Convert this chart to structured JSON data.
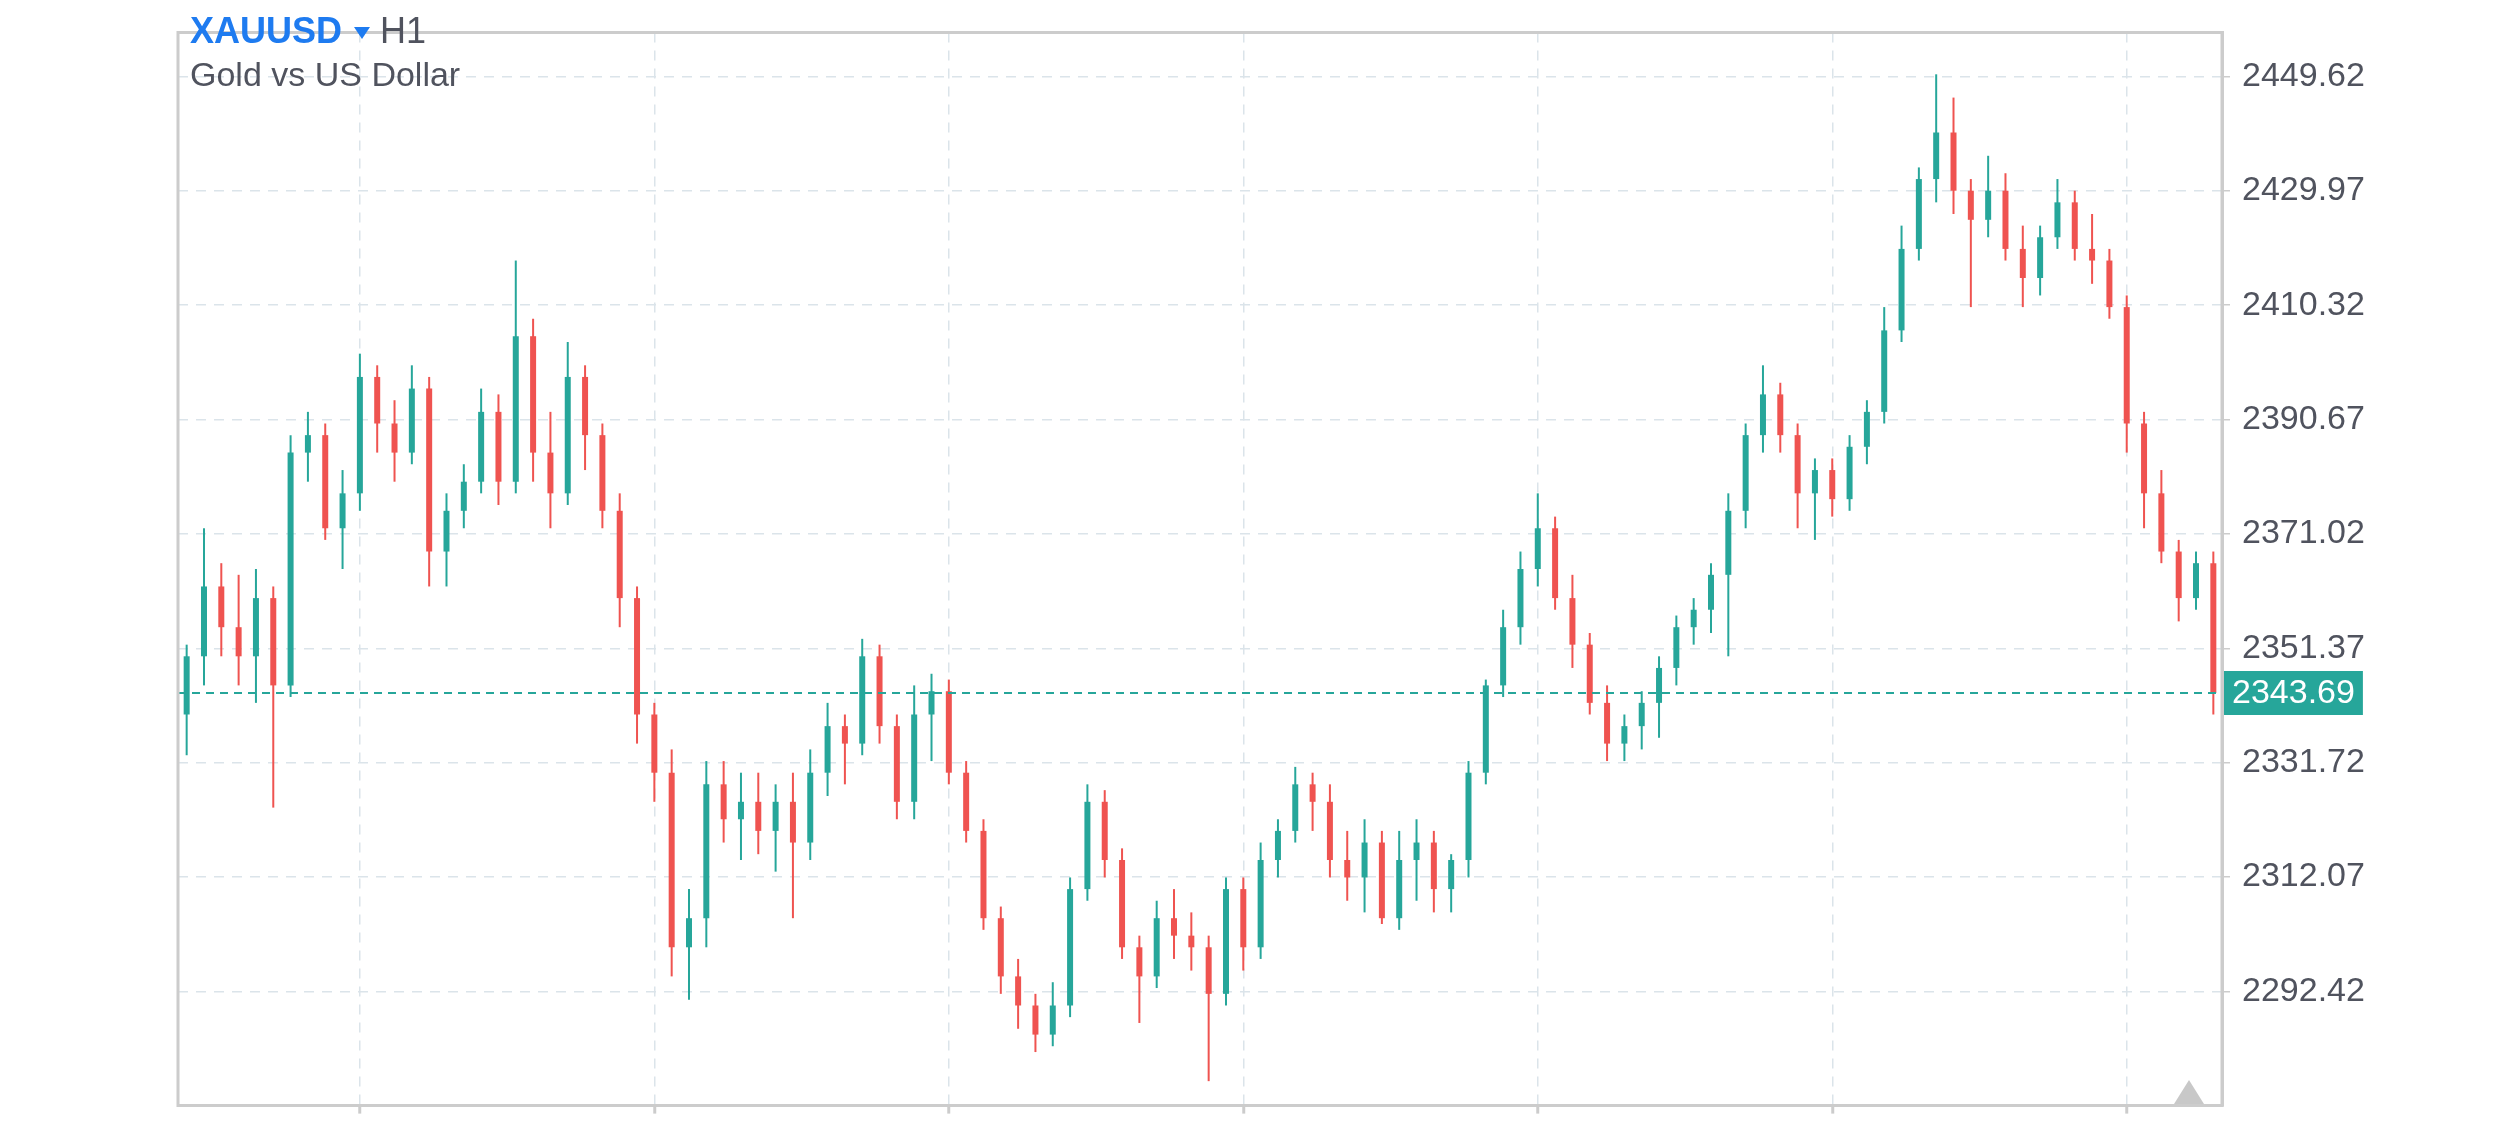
{
  "chart_data": {
    "type": "candlestick",
    "title": "XAUUSD",
    "subtitle": "Gold vs US Dollar",
    "annotations": [
      "H1"
    ],
    "categories": [
      null,
      null,
      null,
      null,
      null,
      null,
      null,
      null,
      null,
      null,
      null,
      null,
      null,
      null,
      null,
      null,
      null,
      null,
      null,
      null,
      null,
      null,
      null,
      null,
      null,
      null,
      null,
      null,
      null,
      null,
      null,
      null,
      null,
      null,
      null,
      null,
      null,
      null,
      null,
      null,
      null,
      null,
      null,
      null,
      null,
      null,
      null,
      null,
      null,
      null,
      null,
      null,
      null,
      null,
      null,
      null,
      null,
      null,
      null,
      null,
      null,
      null,
      null,
      null,
      null,
      null,
      null,
      null,
      null,
      null,
      null,
      null,
      null,
      null,
      null,
      null,
      null,
      null,
      null,
      null,
      null,
      null,
      null,
      null,
      null,
      null,
      null,
      null,
      null,
      null,
      null,
      null,
      null,
      null,
      null,
      null,
      null,
      null,
      null,
      null,
      null,
      null,
      null,
      null,
      null,
      null,
      null,
      null,
      null,
      null,
      null,
      null,
      null,
      null,
      null,
      null,
      null,
      null
    ],
    "ohlc": [
      [
        2340,
        2352,
        2333,
        2350
      ],
      [
        2350,
        2372,
        2345,
        2362
      ],
      [
        2362,
        2366,
        2350,
        2355
      ],
      [
        2355,
        2364,
        2345,
        2350
      ],
      [
        2350,
        2365,
        2342,
        2360
      ],
      [
        2360,
        2362,
        2324,
        2345
      ],
      [
        2345,
        2388,
        2343,
        2385
      ],
      [
        2385,
        2392,
        2380,
        2388
      ],
      [
        2388,
        2390,
        2370,
        2372
      ],
      [
        2372,
        2382,
        2365,
        2378
      ],
      [
        2378,
        2402,
        2375,
        2398
      ],
      [
        2398,
        2400,
        2385,
        2390
      ],
      [
        2390,
        2394,
        2380,
        2385
      ],
      [
        2385,
        2400,
        2383,
        2396
      ],
      [
        2396,
        2398,
        2362,
        2368
      ],
      [
        2368,
        2378,
        2362,
        2375
      ],
      [
        2375,
        2383,
        2372,
        2380
      ],
      [
        2380,
        2396,
        2378,
        2392
      ],
      [
        2392,
        2395,
        2376,
        2380
      ],
      [
        2380,
        2418,
        2378,
        2405
      ],
      [
        2405,
        2408,
        2380,
        2385
      ],
      [
        2385,
        2392,
        2372,
        2378
      ],
      [
        2378,
        2404,
        2376,
        2398
      ],
      [
        2398,
        2400,
        2382,
        2388
      ],
      [
        2388,
        2390,
        2372,
        2375
      ],
      [
        2375,
        2378,
        2355,
        2360
      ],
      [
        2360,
        2362,
        2335,
        2340
      ],
      [
        2340,
        2342,
        2325,
        2330
      ],
      [
        2330,
        2334,
        2295,
        2300
      ],
      [
        2300,
        2310,
        2291,
        2305
      ],
      [
        2305,
        2332,
        2300,
        2328
      ],
      [
        2328,
        2332,
        2318,
        2322
      ],
      [
        2322,
        2330,
        2315,
        2325
      ],
      [
        2325,
        2330,
        2316,
        2320
      ],
      [
        2320,
        2328,
        2313,
        2325
      ],
      [
        2325,
        2330,
        2305,
        2318
      ],
      [
        2318,
        2334,
        2315,
        2330
      ],
      [
        2330,
        2342,
        2326,
        2338
      ],
      [
        2338,
        2340,
        2328,
        2335
      ],
      [
        2335,
        2353,
        2333,
        2350
      ],
      [
        2350,
        2352,
        2335,
        2338
      ],
      [
        2338,
        2340,
        2322,
        2325
      ],
      [
        2325,
        2345,
        2322,
        2340
      ],
      [
        2340,
        2347,
        2332,
        2344
      ],
      [
        2344,
        2346,
        2328,
        2330
      ],
      [
        2330,
        2332,
        2318,
        2320
      ],
      [
        2320,
        2322,
        2303,
        2305
      ],
      [
        2305,
        2307,
        2292,
        2295
      ],
      [
        2295,
        2298,
        2286,
        2290
      ],
      [
        2290,
        2292,
        2282,
        2285
      ],
      [
        2285,
        2294,
        2283,
        2290
      ],
      [
        2290,
        2312,
        2288,
        2310
      ],
      [
        2310,
        2328,
        2308,
        2325
      ],
      [
        2325,
        2327,
        2312,
        2315
      ],
      [
        2315,
        2317,
        2298,
        2300
      ],
      [
        2300,
        2302,
        2287,
        2295
      ],
      [
        2295,
        2308,
        2293,
        2305
      ],
      [
        2305,
        2310,
        2298,
        2302
      ],
      [
        2302,
        2306,
        2296,
        2300
      ],
      [
        2300,
        2302,
        2277,
        2292
      ],
      [
        2292,
        2312,
        2290,
        2310
      ],
      [
        2310,
        2312,
        2296,
        2300
      ],
      [
        2300,
        2318,
        2298,
        2315
      ],
      [
        2315,
        2322,
        2312,
        2320
      ],
      [
        2320,
        2331,
        2318,
        2328
      ],
      [
        2328,
        2330,
        2320,
        2325
      ],
      [
        2325,
        2328,
        2312,
        2315
      ],
      [
        2315,
        2320,
        2308,
        2312
      ],
      [
        2312,
        2322,
        2306,
        2318
      ],
      [
        2318,
        2320,
        2304,
        2305
      ],
      [
        2305,
        2320,
        2303,
        2315
      ],
      [
        2315,
        2322,
        2308,
        2318
      ],
      [
        2318,
        2320,
        2306,
        2310
      ],
      [
        2310,
        2316,
        2306,
        2315
      ],
      [
        2315,
        2332,
        2312,
        2330
      ],
      [
        2330,
        2346,
        2328,
        2345
      ],
      [
        2345,
        2358,
        2343,
        2355
      ],
      [
        2355,
        2368,
        2352,
        2365
      ],
      [
        2365,
        2378,
        2362,
        2372
      ],
      [
        2372,
        2374,
        2358,
        2360
      ],
      [
        2360,
        2364,
        2348,
        2352
      ],
      [
        2352,
        2354,
        2340,
        2342
      ],
      [
        2342,
        2345,
        2332,
        2335
      ],
      [
        2335,
        2340,
        2332,
        2338
      ],
      [
        2338,
        2344,
        2334,
        2342
      ],
      [
        2342,
        2350,
        2336,
        2348
      ],
      [
        2348,
        2357,
        2345,
        2355
      ],
      [
        2355,
        2360,
        2352,
        2358
      ],
      [
        2358,
        2366,
        2354,
        2364
      ],
      [
        2364,
        2378,
        2350,
        2375
      ],
      [
        2375,
        2390,
        2372,
        2388
      ],
      [
        2388,
        2400,
        2385,
        2395
      ],
      [
        2395,
        2397,
        2385,
        2388
      ],
      [
        2388,
        2390,
        2372,
        2378
      ],
      [
        2378,
        2384,
        2370,
        2382
      ],
      [
        2382,
        2384,
        2374,
        2377
      ],
      [
        2377,
        2388,
        2375,
        2386
      ],
      [
        2386,
        2394,
        2383,
        2392
      ],
      [
        2392,
        2410,
        2390,
        2406
      ],
      [
        2406,
        2424,
        2404,
        2420
      ],
      [
        2420,
        2434,
        2418,
        2432
      ],
      [
        2432,
        2450,
        2428,
        2440
      ],
      [
        2440,
        2446,
        2426,
        2430
      ],
      [
        2430,
        2432,
        2410,
        2425
      ],
      [
        2425,
        2436,
        2422,
        2430
      ],
      [
        2430,
        2433,
        2418,
        2420
      ],
      [
        2420,
        2424,
        2410,
        2415
      ],
      [
        2415,
        2424,
        2412,
        2422
      ],
      [
        2422,
        2432,
        2420,
        2428
      ],
      [
        2428,
        2430,
        2418,
        2420
      ],
      [
        2420,
        2426,
        2414,
        2418
      ],
      [
        2418,
        2420,
        2408,
        2410
      ],
      [
        2410,
        2412,
        2385,
        2390
      ],
      [
        2390,
        2392,
        2372,
        2378
      ],
      [
        2378,
        2382,
        2366,
        2368
      ],
      [
        2368,
        2370,
        2356,
        2360
      ],
      [
        2360,
        2368,
        2358,
        2366
      ],
      [
        2366,
        2368,
        2340,
        2343.69
      ]
    ],
    "ylim": [
      2272.8,
      2457.2
    ],
    "yticks": [
      2292.42,
      2312.07,
      2331.72,
      2351.37,
      2371.02,
      2390.67,
      2410.32,
      2429.97,
      2449.62
    ],
    "ref_lines": [
      {
        "axis": "y",
        "value": 2343.69,
        "label": "2343.69",
        "color": "#26a69a",
        "line_style": "dashed"
      }
    ],
    "grid": true,
    "legend": false,
    "tick_labels": "y"
  }
}
